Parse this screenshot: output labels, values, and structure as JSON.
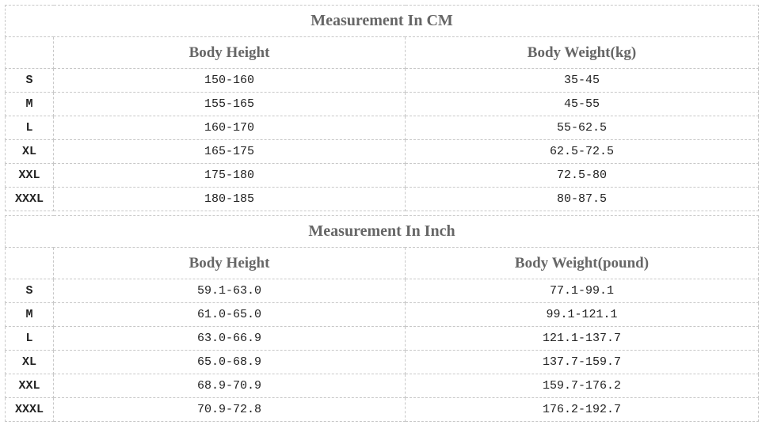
{
  "tables": [
    {
      "title": "Measurement In CM",
      "headers": [
        "Body Height",
        "Body Weight(kg)"
      ],
      "rows": [
        [
          "S",
          "150-160",
          "35-45"
        ],
        [
          "M",
          "155-165",
          "45-55"
        ],
        [
          "L",
          "160-170",
          "55-62.5"
        ],
        [
          "XL",
          "165-175",
          "62.5-72.5"
        ],
        [
          "XXL",
          "175-180",
          "72.5-80"
        ],
        [
          "XXXL",
          "180-185",
          "80-87.5"
        ]
      ]
    },
    {
      "title": "Measurement In Inch",
      "headers": [
        "Body Height",
        "Body Weight(pound)"
      ],
      "rows": [
        [
          "S",
          "59.1-63.0",
          "77.1-99.1"
        ],
        [
          "M",
          "61.0-65.0",
          "99.1-121.1"
        ],
        [
          "L",
          "63.0-66.9",
          "121.1-137.7"
        ],
        [
          "XL",
          "65.0-68.9",
          "137.7-159.7"
        ],
        [
          "XXL",
          "68.9-70.9",
          "159.7-176.2"
        ],
        [
          "XXXL",
          "70.9-72.8",
          "176.2-192.7"
        ]
      ]
    }
  ]
}
